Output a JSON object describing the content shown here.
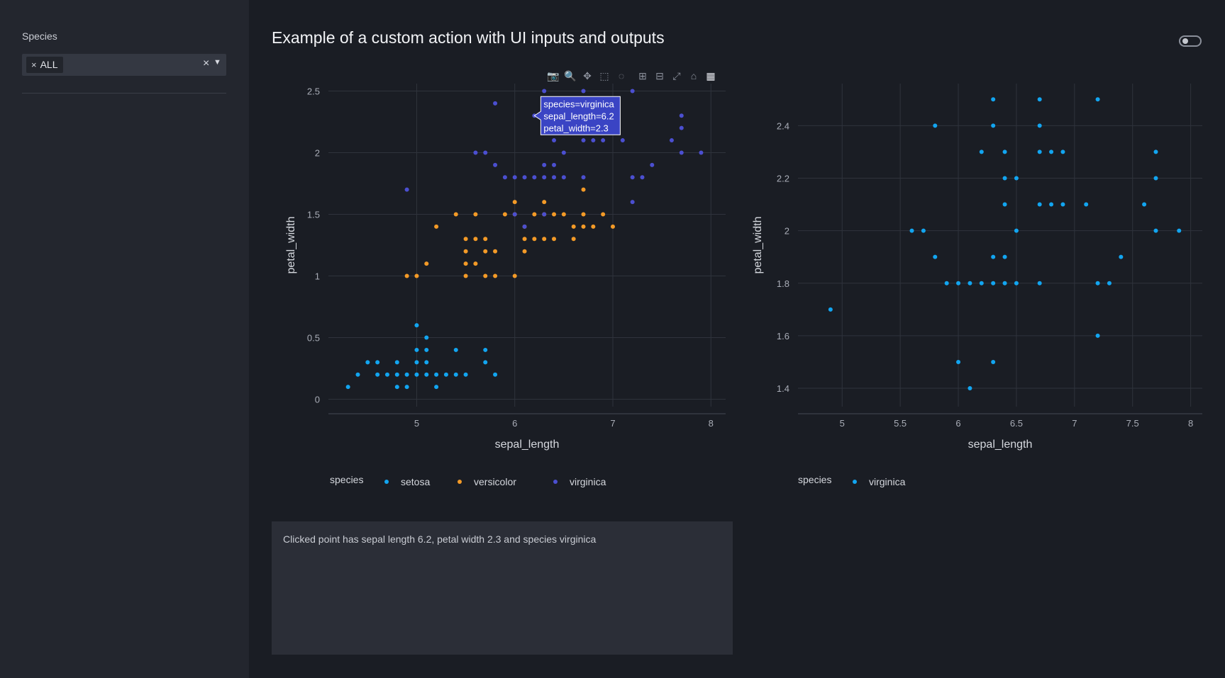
{
  "sidebar": {
    "filter_label": "Species",
    "selected_chip": "ALL",
    "chip_remove_symbol": "×",
    "clear_symbol": "×",
    "caret_icon": "chevron-down-icon"
  },
  "header": {
    "title": "Example of a custom action with UI inputs and outputs"
  },
  "theme_toggle": {
    "state": "off"
  },
  "modebar": [
    {
      "name": "camera-icon",
      "glyph": "📷"
    },
    {
      "name": "zoom-icon",
      "glyph": "🔍"
    },
    {
      "name": "pan-icon",
      "glyph": "✥"
    },
    {
      "name": "box-select-icon",
      "glyph": "⬚"
    },
    {
      "name": "lasso-icon",
      "glyph": "◌"
    },
    {
      "name": "zoom-in-icon",
      "glyph": "⊞"
    },
    {
      "name": "zoom-out-icon",
      "glyph": "⊟"
    },
    {
      "name": "autoscale-icon",
      "glyph": "⤢"
    },
    {
      "name": "reset-axes-icon",
      "glyph": "⌂"
    },
    {
      "name": "plotly-logo-icon",
      "glyph": "▦"
    }
  ],
  "colors": {
    "setosa": "#12a5f0",
    "versicolor": "#f39a27",
    "virginica": "#4b4fd0",
    "hover_bg": "#3a44c4"
  },
  "chart_data": [
    {
      "type": "scatter",
      "xlabel": "sepal_length",
      "ylabel": "petal_width",
      "xticks": [
        5,
        6,
        7,
        8
      ],
      "yticks": [
        "0",
        "0.5",
        "1",
        "1.5",
        "2",
        "2.5"
      ],
      "xlim": [
        4.1,
        8.15
      ],
      "ylim": [
        -0.06,
        2.56
      ],
      "grid": true,
      "legend_title": "species",
      "legend_position": "bottom",
      "hover": {
        "x": 6.2,
        "y": 2.3,
        "lines": [
          "species=virginica",
          "sepal_length=6.2",
          "petal_width=2.3"
        ]
      },
      "series": [
        {
          "name": "setosa",
          "color": "#12a5f0",
          "points": [
            [
              4.3,
              0.1
            ],
            [
              4.4,
              0.2
            ],
            [
              4.5,
              0.3
            ],
            [
              4.6,
              0.2
            ],
            [
              4.6,
              0.3
            ],
            [
              4.7,
              0.2
            ],
            [
              4.8,
              0.1
            ],
            [
              4.8,
              0.2
            ],
            [
              4.8,
              0.3
            ],
            [
              4.9,
              0.1
            ],
            [
              4.9,
              0.2
            ],
            [
              5.0,
              0.2
            ],
            [
              5.0,
              0.3
            ],
            [
              5.0,
              0.4
            ],
            [
              5.0,
              0.6
            ],
            [
              5.1,
              0.2
            ],
            [
              5.1,
              0.3
            ],
            [
              5.1,
              0.4
            ],
            [
              5.1,
              0.5
            ],
            [
              5.2,
              0.1
            ],
            [
              5.2,
              0.2
            ],
            [
              5.3,
              0.2
            ],
            [
              5.4,
              0.2
            ],
            [
              5.4,
              0.4
            ],
            [
              5.5,
              0.2
            ],
            [
              5.7,
              0.3
            ],
            [
              5.7,
              0.4
            ],
            [
              5.8,
              0.2
            ]
          ]
        },
        {
          "name": "versicolor",
          "color": "#f39a27",
          "points": [
            [
              4.9,
              1.0
            ],
            [
              5.0,
              1.0
            ],
            [
              5.1,
              1.1
            ],
            [
              5.2,
              1.4
            ],
            [
              5.4,
              1.5
            ],
            [
              5.5,
              1.0
            ],
            [
              5.5,
              1.1
            ],
            [
              5.5,
              1.2
            ],
            [
              5.5,
              1.3
            ],
            [
              5.6,
              1.1
            ],
            [
              5.6,
              1.3
            ],
            [
              5.6,
              1.5
            ],
            [
              5.7,
              1.0
            ],
            [
              5.7,
              1.2
            ],
            [
              5.7,
              1.3
            ],
            [
              5.8,
              1.0
            ],
            [
              5.8,
              1.2
            ],
            [
              5.9,
              1.5
            ],
            [
              6.0,
              1.0
            ],
            [
              6.0,
              1.5
            ],
            [
              6.0,
              1.6
            ],
            [
              6.1,
              1.2
            ],
            [
              6.1,
              1.3
            ],
            [
              6.1,
              1.4
            ],
            [
              6.2,
              1.3
            ],
            [
              6.2,
              1.5
            ],
            [
              6.3,
              1.3
            ],
            [
              6.3,
              1.5
            ],
            [
              6.3,
              1.6
            ],
            [
              6.4,
              1.3
            ],
            [
              6.4,
              1.5
            ],
            [
              6.5,
              1.5
            ],
            [
              6.6,
              1.3
            ],
            [
              6.6,
              1.4
            ],
            [
              6.7,
              1.4
            ],
            [
              6.7,
              1.5
            ],
            [
              6.7,
              1.7
            ],
            [
              6.8,
              1.4
            ],
            [
              6.9,
              1.5
            ],
            [
              7.0,
              1.4
            ]
          ]
        },
        {
          "name": "virginica",
          "color": "#4b4fd0",
          "points": [
            [
              4.9,
              1.7
            ],
            [
              5.6,
              2.0
            ],
            [
              5.7,
              2.0
            ],
            [
              5.8,
              1.9
            ],
            [
              5.8,
              2.4
            ],
            [
              5.9,
              1.8
            ],
            [
              6.0,
              1.5
            ],
            [
              6.0,
              1.8
            ],
            [
              6.1,
              1.4
            ],
            [
              6.1,
              1.8
            ],
            [
              6.2,
              1.8
            ],
            [
              6.2,
              2.3
            ],
            [
              6.3,
              1.5
            ],
            [
              6.3,
              1.8
            ],
            [
              6.3,
              1.9
            ],
            [
              6.3,
              2.4
            ],
            [
              6.3,
              2.5
            ],
            [
              6.4,
              1.8
            ],
            [
              6.4,
              1.9
            ],
            [
              6.4,
              2.1
            ],
            [
              6.4,
              2.2
            ],
            [
              6.4,
              2.3
            ],
            [
              6.5,
              1.8
            ],
            [
              6.5,
              2.0
            ],
            [
              6.5,
              2.2
            ],
            [
              6.7,
              1.8
            ],
            [
              6.7,
              2.1
            ],
            [
              6.7,
              2.3
            ],
            [
              6.7,
              2.4
            ],
            [
              6.7,
              2.5
            ],
            [
              6.8,
              2.1
            ],
            [
              6.8,
              2.3
            ],
            [
              6.9,
              2.1
            ],
            [
              6.9,
              2.3
            ],
            [
              7.1,
              2.1
            ],
            [
              7.2,
              1.6
            ],
            [
              7.2,
              1.8
            ],
            [
              7.2,
              2.5
            ],
            [
              7.3,
              1.8
            ],
            [
              7.4,
              1.9
            ],
            [
              7.6,
              2.1
            ],
            [
              7.7,
              2.0
            ],
            [
              7.7,
              2.2
            ],
            [
              7.7,
              2.3
            ],
            [
              7.9,
              2.0
            ]
          ]
        }
      ]
    },
    {
      "type": "scatter",
      "xlabel": "sepal_length",
      "ylabel": "petal_width",
      "xticks": [
        "5",
        "5.5",
        "6",
        "6.5",
        "7",
        "7.5",
        "8"
      ],
      "yticks": [
        "1.4",
        "1.6",
        "1.8",
        "2",
        "2.2",
        "2.4"
      ],
      "xlim": [
        4.62,
        8.1
      ],
      "ylim": [
        1.33,
        2.56
      ],
      "grid": true,
      "legend_title": "species",
      "legend_position": "bottom",
      "series": [
        {
          "name": "virginica",
          "color": "#12a5f0",
          "points": [
            [
              4.9,
              1.7
            ],
            [
              5.6,
              2.0
            ],
            [
              5.7,
              2.0
            ],
            [
              5.8,
              1.9
            ],
            [
              5.8,
              2.4
            ],
            [
              5.9,
              1.8
            ],
            [
              6.0,
              1.5
            ],
            [
              6.0,
              1.8
            ],
            [
              6.1,
              1.4
            ],
            [
              6.1,
              1.8
            ],
            [
              6.2,
              1.8
            ],
            [
              6.2,
              2.3
            ],
            [
              6.3,
              1.5
            ],
            [
              6.3,
              1.8
            ],
            [
              6.3,
              1.9
            ],
            [
              6.3,
              2.4
            ],
            [
              6.3,
              2.5
            ],
            [
              6.4,
              1.8
            ],
            [
              6.4,
              1.9
            ],
            [
              6.4,
              2.1
            ],
            [
              6.4,
              2.2
            ],
            [
              6.4,
              2.3
            ],
            [
              6.5,
              1.8
            ],
            [
              6.5,
              2.0
            ],
            [
              6.5,
              2.2
            ],
            [
              6.7,
              1.8
            ],
            [
              6.7,
              2.1
            ],
            [
              6.7,
              2.3
            ],
            [
              6.7,
              2.4
            ],
            [
              6.7,
              2.5
            ],
            [
              6.8,
              2.1
            ],
            [
              6.8,
              2.3
            ],
            [
              6.9,
              2.1
            ],
            [
              6.9,
              2.3
            ],
            [
              7.1,
              2.1
            ],
            [
              7.2,
              1.6
            ],
            [
              7.2,
              1.8
            ],
            [
              7.2,
              2.5
            ],
            [
              7.3,
              1.8
            ],
            [
              7.4,
              1.9
            ],
            [
              7.6,
              2.1
            ],
            [
              7.7,
              2.0
            ],
            [
              7.7,
              2.2
            ],
            [
              7.7,
              2.3
            ],
            [
              7.9,
              2.0
            ]
          ]
        }
      ]
    }
  ],
  "output": {
    "text": "Clicked point has sepal length 6.2, petal width 2.3 and species virginica"
  }
}
